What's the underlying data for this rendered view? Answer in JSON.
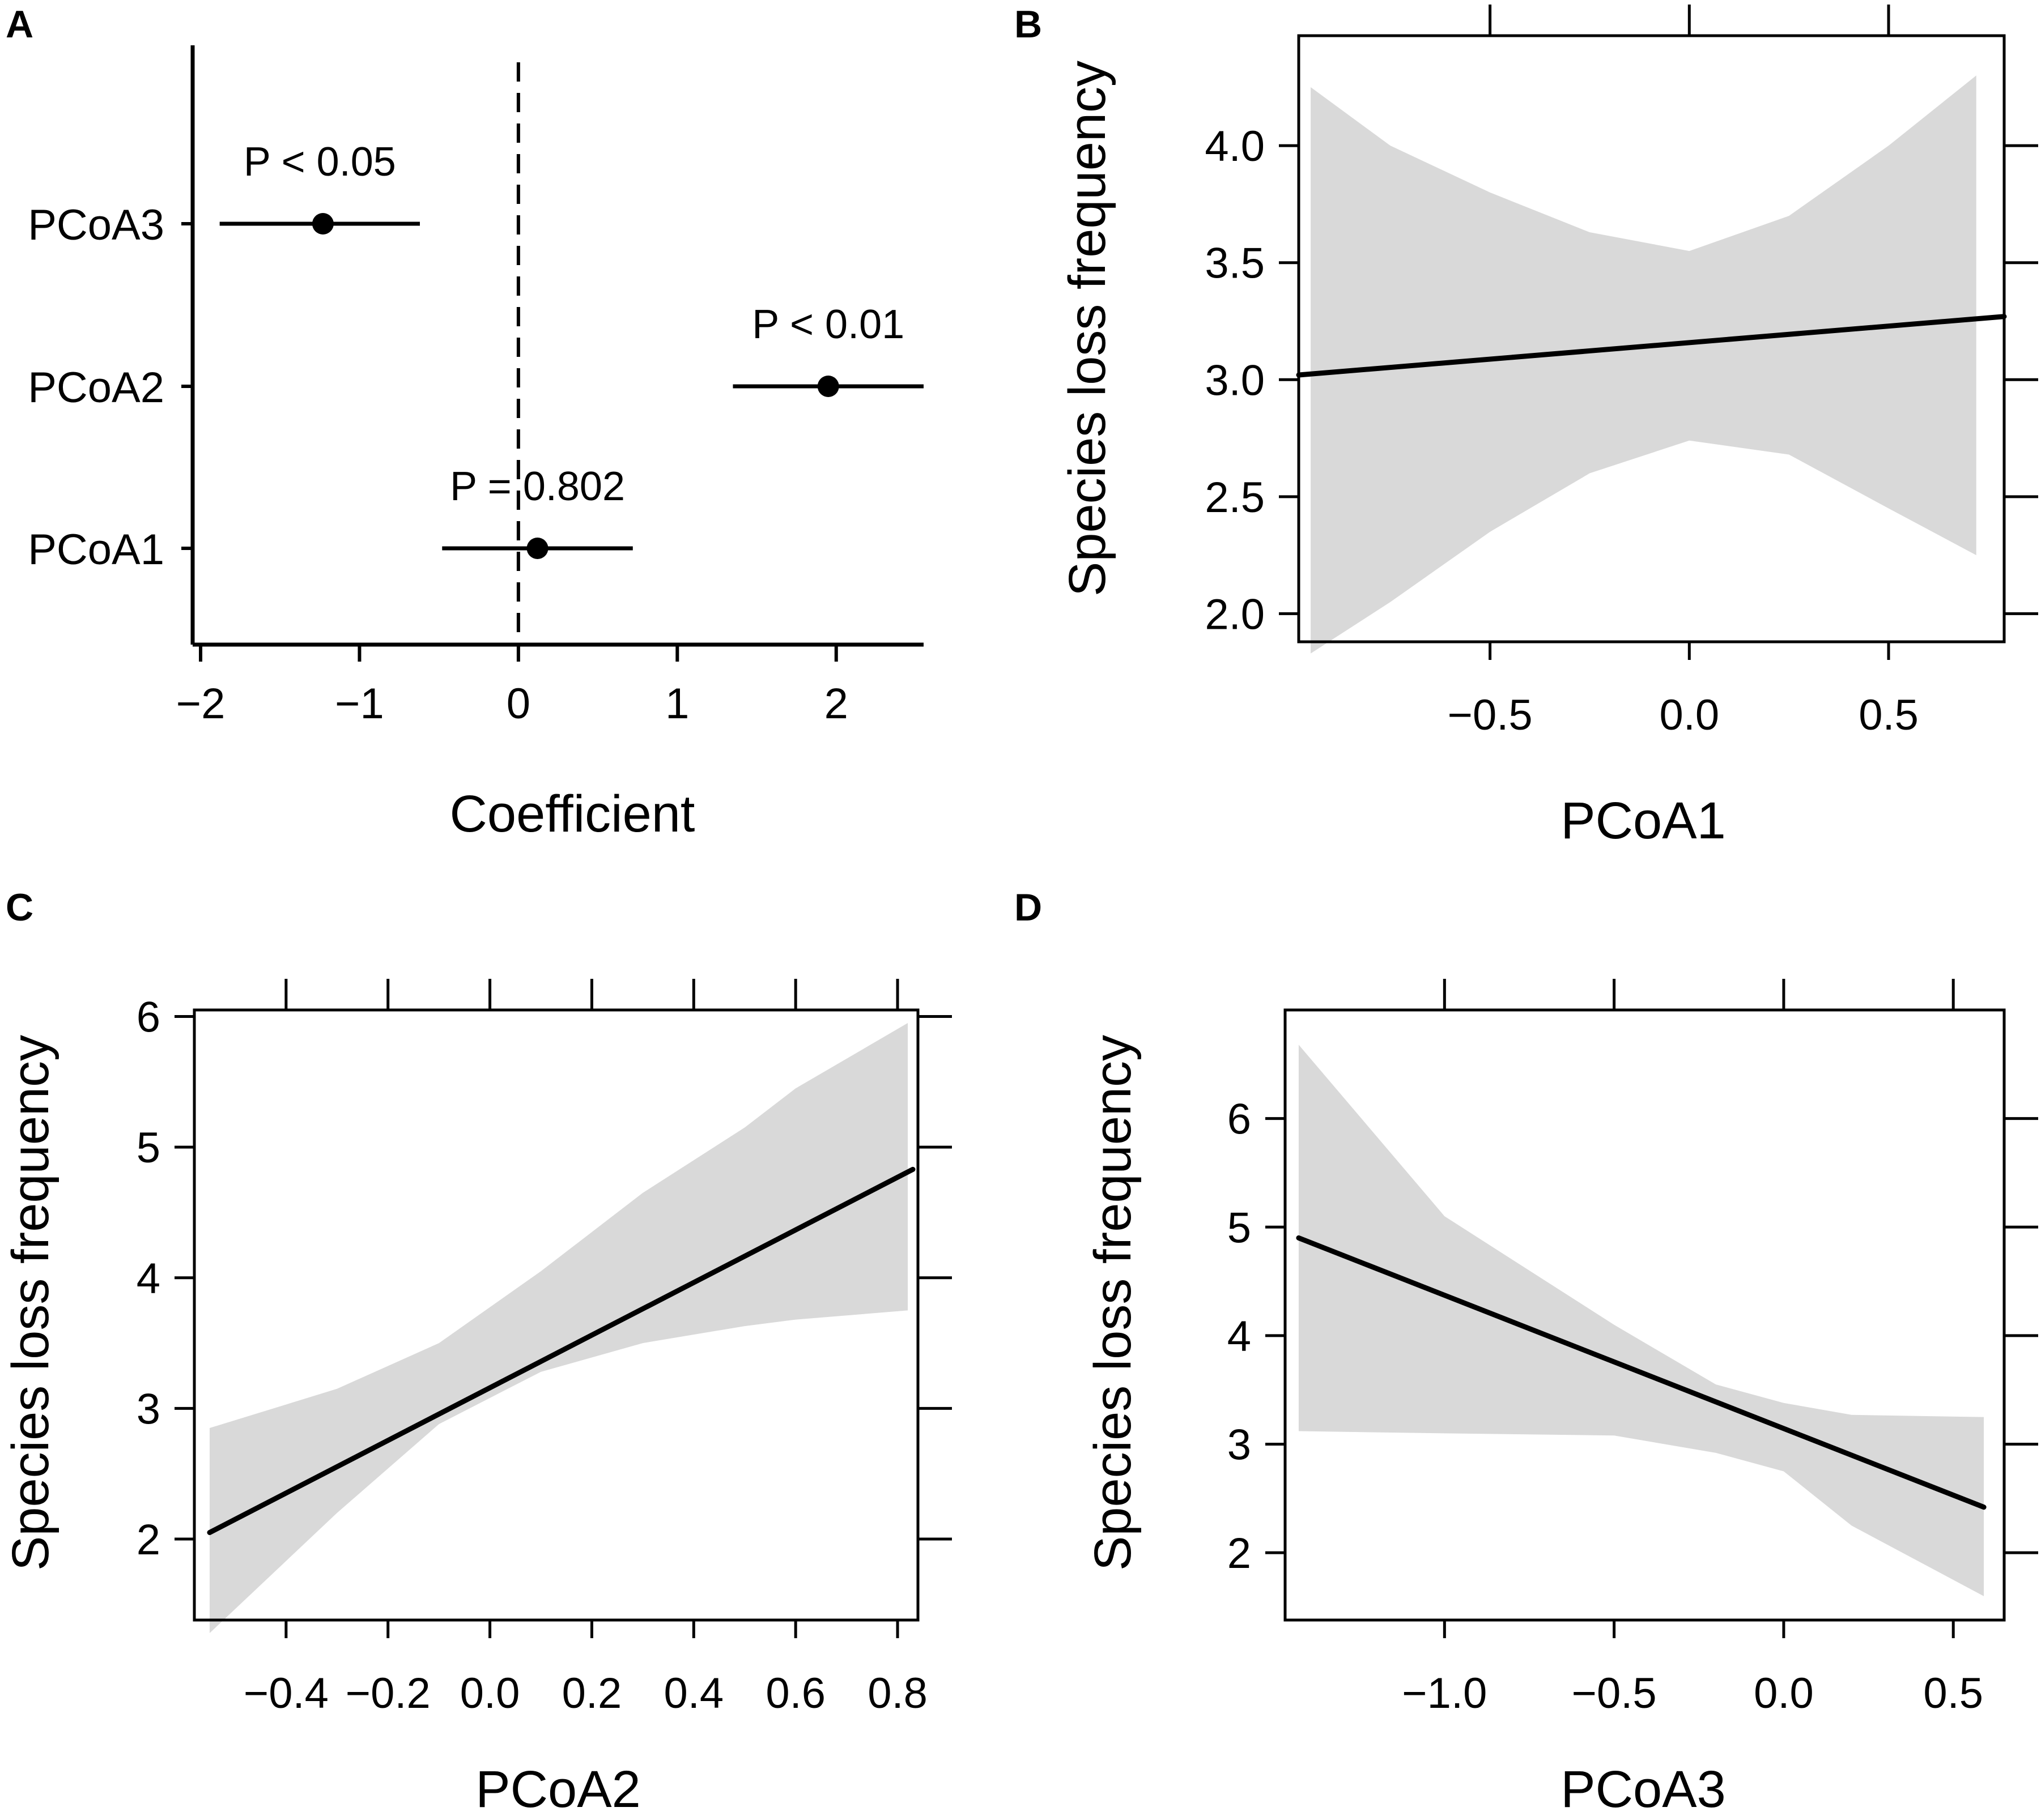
{
  "chart_data": [
    {
      "panel": "A",
      "type": "scatter",
      "subtype": "coefficient-plot",
      "xlabel": "Coefficient",
      "ylabel": "",
      "xlim": [
        -2.05,
        2.55
      ],
      "xticks": [
        -2,
        -1,
        0,
        1,
        2
      ],
      "xtick_labels": [
        "−2",
        "−1",
        "0",
        "1",
        "2"
      ],
      "reference_line": 0,
      "points": [
        {
          "label": "PCoA3",
          "estimate": -1.23,
          "lower": -1.88,
          "upper": -0.62,
          "annotation": "P < 0.05"
        },
        {
          "label": "PCoA2",
          "estimate": 1.95,
          "lower": 1.35,
          "upper": 2.55,
          "annotation": "P < 0.01"
        },
        {
          "label": "PCoA1",
          "estimate": 0.12,
          "lower": -0.48,
          "upper": 0.72,
          "annotation": "P = 0.802"
        }
      ]
    },
    {
      "panel": "B",
      "type": "line",
      "xlabel": "PCoA1",
      "ylabel": "Species loss frequency",
      "xlim": [
        -0.98,
        0.79
      ],
      "ylim": [
        1.88,
        4.47
      ],
      "xticks": [
        -0.5,
        0.0,
        0.5
      ],
      "xtick_labels": [
        "−0.5",
        "0.0",
        "0.5"
      ],
      "yticks": [
        2.0,
        2.5,
        3.0,
        3.5,
        4.0
      ],
      "ytick_labels": [
        "2.0",
        "2.5",
        "3.0",
        "3.5",
        "4.0"
      ],
      "fit": {
        "x": [
          -0.98,
          0.79
        ],
        "y": [
          3.02,
          3.27
        ]
      },
      "band": {
        "x": [
          -0.95,
          -0.75,
          -0.5,
          -0.25,
          0.0,
          0.25,
          0.5,
          0.72
        ],
        "upper": [
          4.25,
          4.0,
          3.8,
          3.63,
          3.55,
          3.7,
          4.0,
          4.3
        ],
        "lower": [
          1.83,
          2.05,
          2.35,
          2.6,
          2.74,
          2.68,
          2.45,
          2.25
        ]
      }
    },
    {
      "panel": "C",
      "type": "line",
      "xlabel": "PCoA2",
      "ylabel": "Species loss frequency",
      "xlim": [
        -0.58,
        0.84
      ],
      "ylim": [
        1.38,
        6.05
      ],
      "xticks": [
        -0.4,
        -0.2,
        0.0,
        0.2,
        0.4,
        0.6,
        0.8
      ],
      "xtick_labels": [
        "−0.4",
        "−0.2",
        "0.0",
        "0.2",
        "0.4",
        "0.6",
        "0.8"
      ],
      "yticks": [
        2,
        3,
        4,
        5,
        6
      ],
      "ytick_labels": [
        "2",
        "3",
        "4",
        "5",
        "6"
      ],
      "fit": {
        "x": [
          -0.55,
          0.83
        ],
        "y": [
          2.05,
          4.83
        ]
      },
      "band": {
        "x": [
          -0.55,
          -0.3,
          -0.1,
          0.1,
          0.3,
          0.5,
          0.6,
          0.82
        ],
        "upper": [
          2.85,
          3.15,
          3.5,
          4.05,
          4.65,
          5.15,
          5.45,
          5.95
        ],
        "lower": [
          1.28,
          2.2,
          2.88,
          3.28,
          3.5,
          3.63,
          3.68,
          3.75
        ]
      }
    },
    {
      "panel": "D",
      "type": "line",
      "xlabel": "PCoA3",
      "ylabel": "Species loss frequency",
      "xlim": [
        -1.47,
        0.65
      ],
      "ylim": [
        1.38,
        7.0
      ],
      "xticks": [
        -1.0,
        -0.5,
        0.0,
        0.5
      ],
      "xtick_labels": [
        "−1.0",
        "−0.5",
        "0.0",
        "0.5"
      ],
      "yticks": [
        2,
        3,
        4,
        5,
        6
      ],
      "ytick_labels": [
        "2",
        "3",
        "4",
        "5",
        "6"
      ],
      "fit": {
        "x": [
          -1.43,
          0.59
        ],
        "y": [
          4.9,
          2.42
        ]
      },
      "band": {
        "x": [
          -1.43,
          -1.0,
          -0.5,
          -0.2,
          0.0,
          0.2,
          0.59
        ],
        "upper": [
          6.68,
          5.1,
          4.1,
          3.55,
          3.38,
          3.27,
          3.25
        ],
        "lower": [
          3.12,
          3.1,
          3.08,
          2.92,
          2.75,
          2.25,
          1.6
        ]
      }
    }
  ]
}
